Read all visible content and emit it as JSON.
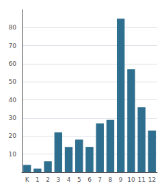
{
  "chart_data": {
    "type": "bar",
    "categories": [
      "K",
      "1",
      "2",
      "3",
      "4",
      "5",
      "6",
      "7",
      "8",
      "9",
      "10",
      "11",
      "12"
    ],
    "values": [
      4,
      2,
      6,
      22,
      14,
      18,
      14,
      27,
      29,
      85,
      57,
      36,
      23
    ],
    "color": "#2e6e8e",
    "ylim": [
      0,
      90
    ],
    "yticks": [
      10,
      20,
      30,
      40,
      50,
      60,
      70,
      80
    ],
    "grid": true
  }
}
